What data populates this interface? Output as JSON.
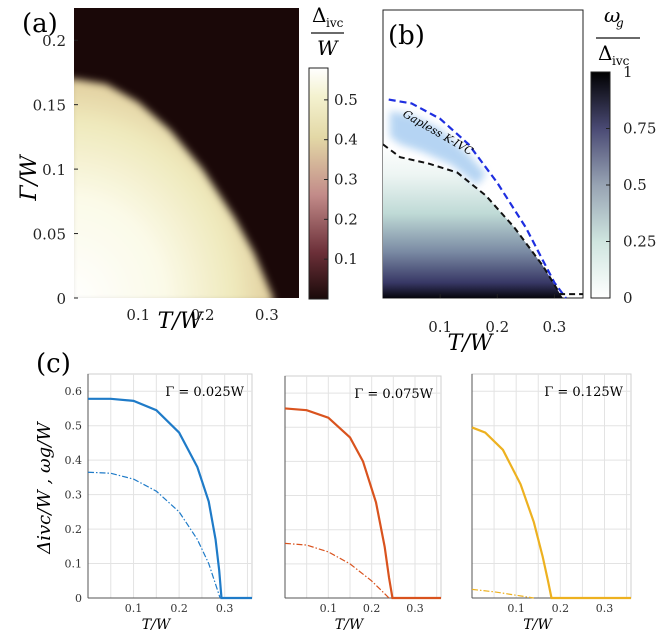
{
  "panels": {
    "a": {
      "label": "(a)"
    },
    "b": {
      "label": "(b)"
    },
    "c": {
      "label": "(c)"
    }
  },
  "colorbars": {
    "a": {
      "title_top": "Δ",
      "title_sub": "ivc",
      "title_bottom": "W",
      "ticks": [
        "0.5",
        "0.4",
        "0.3",
        "0.2",
        "0.1"
      ],
      "tick_values": [
        0.5,
        0.4,
        0.3,
        0.2,
        0.1
      ],
      "range": [
        0,
        0.58
      ]
    },
    "b": {
      "title_top": "ω",
      "title_top_sub": "g",
      "title_bottom": "Δ",
      "title_bottom_sub": "ivc",
      "ticks": [
        "1",
        "0.75",
        "0.5",
        "0.25",
        "0"
      ],
      "tick_values": [
        1,
        0.75,
        0.5,
        0.25,
        0
      ],
      "range": [
        0,
        1
      ]
    }
  },
  "annotations": {
    "gapless_region": "Gapless K-IVC"
  },
  "chart_data": [
    {
      "id": "a",
      "type": "heatmap",
      "xlabel": "T/W",
      "ylabel": "Γ/W",
      "xticks": [
        0.1,
        0.2,
        0.3
      ],
      "yticks": [
        0,
        0.05,
        0.1,
        0.15,
        0.2
      ],
      "xtick_labels": [
        "0.1",
        "0.2",
        "0.3"
      ],
      "ytick_labels": [
        "0",
        "0.05",
        "0.1",
        "0.15",
        "0.2"
      ],
      "xlim": [
        0,
        0.35
      ],
      "ylim": [
        0,
        0.225
      ],
      "colormap": [
        "#1a0a0a",
        "#7a3a45",
        "#c9928f",
        "#e6d6a3",
        "#f2f0c8",
        "#ffffff"
      ],
      "boundary": {
        "T": [
          0,
          0.05,
          0.1,
          0.15,
          0.2,
          0.25,
          0.28,
          0.31
        ],
        "Gamma": [
          0.17,
          0.166,
          0.152,
          0.13,
          0.1,
          0.062,
          0.035,
          0.0
        ]
      },
      "max_value": 0.58
    },
    {
      "id": "b",
      "type": "heatmap",
      "xlabel": "T/W",
      "xticks": [
        0.1,
        0.2,
        0.3
      ],
      "xtick_labels": [
        "0.1",
        "0.2",
        "0.3"
      ],
      "xlim": [
        0,
        0.35
      ],
      "ylim": [
        0,
        0.225
      ],
      "colormap": [
        "#ffffff",
        "#d4e8e2",
        "#9aa6b4",
        "#4a4a74",
        "#000000"
      ],
      "lines": [
        {
          "style": "dashed",
          "color": "#1e2ee0",
          "T": [
            0.01,
            0.05,
            0.1,
            0.15,
            0.2,
            0.25,
            0.3,
            0.32
          ],
          "Gamma": [
            0.155,
            0.152,
            0.14,
            0.12,
            0.09,
            0.055,
            0.012,
            0.0
          ]
        },
        {
          "style": "dashed",
          "color": "#111111",
          "T": [
            0.0,
            0.03,
            0.08,
            0.13,
            0.18,
            0.23,
            0.28,
            0.31,
            0.33,
            0.35
          ],
          "Gamma": [
            0.12,
            0.11,
            0.105,
            0.098,
            0.08,
            0.055,
            0.025,
            0.003,
            0.003,
            0.003
          ]
        }
      ]
    },
    {
      "id": "c1",
      "type": "line",
      "title": "Γ = 0.025W",
      "xlabel": "T/W",
      "ylabel": "Δivc/W , ωg/W",
      "xlim": [
        0,
        0.36
      ],
      "ylim": [
        0,
        0.65
      ],
      "xticks": [
        0.1,
        0.2,
        0.3
      ],
      "yticks": [
        0,
        0.1,
        0.2,
        0.3,
        0.4,
        0.5,
        0.6
      ],
      "ytick_labels": [
        "0",
        "0.1",
        "0.2",
        "0.3",
        "0.4",
        "0.5",
        "0.6"
      ],
      "color": "#1f7bc8",
      "series": [
        {
          "style": "solid",
          "x": [
            0.0,
            0.05,
            0.1,
            0.15,
            0.2,
            0.24,
            0.265,
            0.28,
            0.288,
            0.293,
            0.36
          ],
          "y": [
            0.578,
            0.578,
            0.572,
            0.545,
            0.48,
            0.38,
            0.28,
            0.17,
            0.08,
            0.0,
            0.0
          ]
        },
        {
          "style": "dashdot",
          "x": [
            0.0,
            0.05,
            0.1,
            0.15,
            0.2,
            0.24,
            0.265,
            0.28,
            0.29
          ],
          "y": [
            0.365,
            0.362,
            0.345,
            0.31,
            0.25,
            0.17,
            0.1,
            0.04,
            0.0
          ]
        }
      ]
    },
    {
      "id": "c2",
      "type": "line",
      "title": "Γ = 0.075W",
      "xlabel": "T/W",
      "xlim": [
        0,
        0.36
      ],
      "ylim": [
        0,
        0.65
      ],
      "xticks": [
        0.1,
        0.2,
        0.3
      ],
      "color": "#d9531e",
      "series": [
        {
          "style": "solid",
          "x": [
            0.0,
            0.05,
            0.1,
            0.15,
            0.18,
            0.21,
            0.23,
            0.24,
            0.248,
            0.36
          ],
          "y": [
            0.555,
            0.55,
            0.528,
            0.47,
            0.4,
            0.28,
            0.15,
            0.06,
            0.0,
            0.0
          ]
        },
        {
          "style": "dashdot",
          "x": [
            0.0,
            0.05,
            0.1,
            0.15,
            0.2,
            0.24
          ],
          "y": [
            0.16,
            0.155,
            0.135,
            0.1,
            0.05,
            0.0
          ]
        }
      ]
    },
    {
      "id": "c3",
      "type": "line",
      "title": "Γ = 0.125W",
      "xlabel": "T/W",
      "xlim": [
        0,
        0.36
      ],
      "ylim": [
        0,
        0.65
      ],
      "xticks": [
        0.1,
        0.2,
        0.3
      ],
      "color": "#edb120",
      "series": [
        {
          "style": "solid",
          "x": [
            0.0,
            0.03,
            0.07,
            0.11,
            0.14,
            0.16,
            0.172,
            0.18,
            0.36
          ],
          "y": [
            0.495,
            0.48,
            0.43,
            0.33,
            0.22,
            0.12,
            0.05,
            0.0,
            0.0
          ]
        },
        {
          "style": "dashdot",
          "x": [
            0.0,
            0.05,
            0.1,
            0.14
          ],
          "y": [
            0.025,
            0.018,
            0.008,
            0.0
          ]
        }
      ]
    }
  ]
}
